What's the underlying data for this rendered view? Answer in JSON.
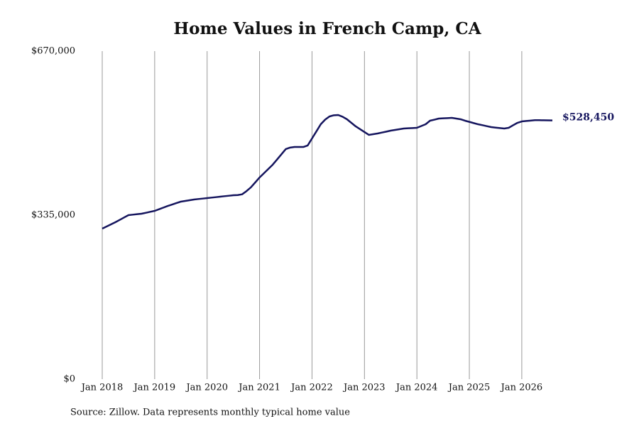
{
  "chart_data": {
    "type": "line",
    "title": "Home Values in French Camp, CA",
    "source": "Source: Zillow. Data represents monthly typical home value",
    "x": [
      "2018-01",
      "2018-02",
      "2018-03",
      "2018-04",
      "2018-05",
      "2018-06",
      "2018-07",
      "2018-08",
      "2018-09",
      "2018-10",
      "2018-11",
      "2018-12",
      "2019-01",
      "2019-02",
      "2019-03",
      "2019-04",
      "2019-05",
      "2019-06",
      "2019-07",
      "2019-08",
      "2019-09",
      "2019-10",
      "2019-11",
      "2019-12",
      "2020-01",
      "2020-02",
      "2020-03",
      "2020-04",
      "2020-05",
      "2020-06",
      "2020-07",
      "2020-08",
      "2020-09",
      "2020-10",
      "2020-11",
      "2020-12",
      "2021-01",
      "2021-02",
      "2021-03",
      "2021-04",
      "2021-05",
      "2021-06",
      "2021-07",
      "2021-08",
      "2021-09",
      "2021-10",
      "2021-11",
      "2021-12",
      "2022-01",
      "2022-02",
      "2022-03",
      "2022-04",
      "2022-05",
      "2022-06",
      "2022-07",
      "2022-08",
      "2022-09",
      "2022-10",
      "2022-11",
      "2022-12",
      "2023-01",
      "2023-02",
      "2023-03",
      "2023-04",
      "2023-05",
      "2023-06",
      "2023-07",
      "2023-08",
      "2023-09",
      "2023-10",
      "2023-11",
      "2023-12",
      "2024-01",
      "2024-02",
      "2024-03",
      "2024-04",
      "2024-05",
      "2024-06",
      "2024-07",
      "2024-08",
      "2024-09",
      "2024-10",
      "2024-11",
      "2024-12",
      "2025-01",
      "2025-02",
      "2025-03",
      "2025-04",
      "2025-05",
      "2025-06",
      "2025-07",
      "2025-08",
      "2025-09",
      "2025-10",
      "2025-11",
      "2025-12",
      "2026-01",
      "2026-02",
      "2026-03",
      "2026-04",
      "2026-05",
      "2026-06",
      "2026-07",
      "2026-08"
    ],
    "series": [
      {
        "name": "Typical home value",
        "color": "#15155e",
        "values": [
          307400,
          311800,
          316100,
          320500,
          325300,
          330200,
          335000,
          336000,
          337000,
          337900,
          339800,
          341800,
          343700,
          347100,
          350400,
          353800,
          356700,
          359700,
          362600,
          364000,
          365500,
          366900,
          367900,
          368800,
          369800,
          370800,
          371700,
          372700,
          373700,
          374600,
          375600,
          376000,
          377500,
          384000,
          391600,
          401700,
          411900,
          420600,
          429300,
          438000,
          448600,
          459300,
          469900,
          473000,
          474200,
          474200,
          474200,
          477200,
          491600,
          506000,
          520600,
          530000,
          536600,
          539000,
          539500,
          536000,
          530800,
          523500,
          516300,
          510500,
          504700,
          498900,
          500300,
          501800,
          503700,
          505600,
          507600,
          509000,
          510500,
          511900,
          512400,
          512900,
          513400,
          517000,
          520600,
          527900,
          530000,
          532200,
          532700,
          533200,
          533700,
          532200,
          530800,
          527900,
          525500,
          523000,
          520600,
          518700,
          516700,
          514800,
          513800,
          512900,
          511900,
          513400,
          518500,
          523500,
          526400,
          527300,
          528100,
          529000,
          528900,
          528800,
          528600,
          528450
        ]
      }
    ],
    "last_value_label": "$528,450",
    "xlim": [
      "2018-01",
      "2026-08"
    ],
    "xticks": [
      {
        "value": "2018-01",
        "label": "Jan 2018"
      },
      {
        "value": "2019-01",
        "label": "Jan 2019"
      },
      {
        "value": "2020-01",
        "label": "Jan 2020"
      },
      {
        "value": "2021-01",
        "label": "Jan 2021"
      },
      {
        "value": "2022-01",
        "label": "Jan 2022"
      },
      {
        "value": "2023-01",
        "label": "Jan 2023"
      },
      {
        "value": "2024-01",
        "label": "Jan 2024"
      },
      {
        "value": "2025-01",
        "label": "Jan 2025"
      },
      {
        "value": "2026-01",
        "label": "Jan 2026"
      }
    ],
    "ylim": [
      0,
      670000
    ],
    "yticks": [
      {
        "value": 0,
        "label": "$0"
      },
      {
        "value": 335000,
        "label": "$335,000"
      },
      {
        "value": 670000,
        "label": "$670,000"
      }
    ],
    "grid": "x"
  }
}
